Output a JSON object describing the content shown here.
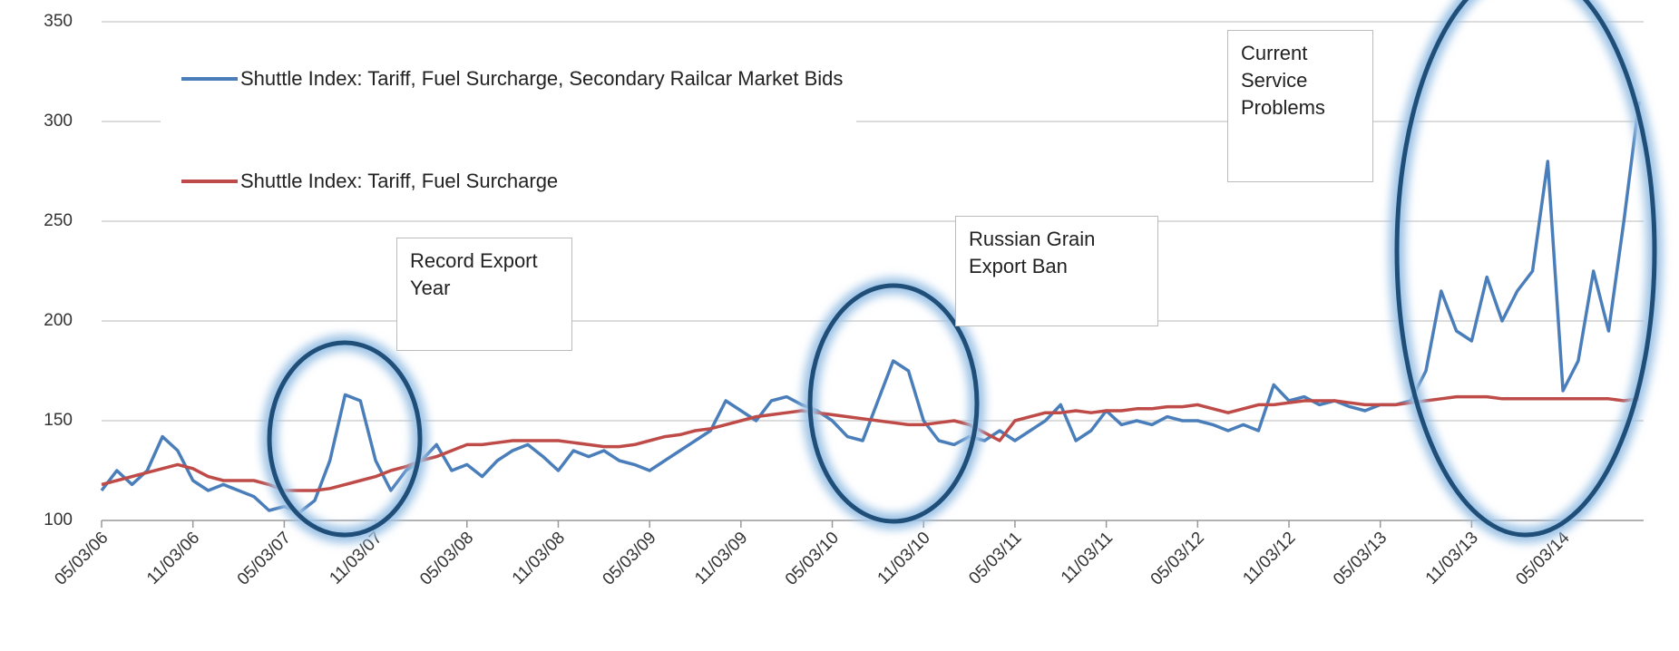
{
  "chart_data": {
    "type": "line",
    "categories": [
      "05/03/06",
      null,
      null,
      null,
      null,
      null,
      "11/03/06",
      null,
      null,
      null,
      null,
      null,
      "05/03/07",
      null,
      null,
      null,
      null,
      null,
      "11/03/07",
      null,
      null,
      null,
      null,
      null,
      "05/03/08",
      null,
      null,
      null,
      null,
      null,
      "11/03/08",
      null,
      null,
      null,
      null,
      null,
      "05/03/09",
      null,
      null,
      null,
      null,
      null,
      "11/03/09",
      null,
      null,
      null,
      null,
      null,
      "05/03/10",
      null,
      null,
      null,
      null,
      null,
      "11/03/10",
      null,
      null,
      null,
      null,
      null,
      "05/03/11",
      null,
      null,
      null,
      null,
      null,
      "11/03/11",
      null,
      null,
      null,
      null,
      null,
      "05/03/12",
      null,
      null,
      null,
      null,
      null,
      "11/03/12",
      null,
      null,
      null,
      null,
      null,
      "05/03/13",
      null,
      null,
      null,
      null,
      null,
      "11/03/13",
      null,
      null,
      null,
      null,
      null,
      "05/03/14",
      null,
      null,
      null,
      null,
      null
    ],
    "series": [
      {
        "name": "Shuttle Index: Tariff, Fuel Surcharge, Secondary Railcar Market Bids",
        "color": "#4a7ebb",
        "values": [
          115,
          125,
          118,
          125,
          142,
          135,
          120,
          115,
          118,
          115,
          112,
          105,
          107,
          104,
          110,
          130,
          163,
          160,
          130,
          115,
          125,
          130,
          138,
          125,
          128,
          122,
          130,
          135,
          138,
          132,
          125,
          135,
          132,
          135,
          130,
          128,
          125,
          130,
          135,
          140,
          145,
          160,
          155,
          150,
          160,
          162,
          158,
          155,
          150,
          142,
          140,
          160,
          180,
          175,
          150,
          140,
          138,
          142,
          140,
          145,
          140,
          145,
          150,
          158,
          140,
          145,
          155,
          148,
          150,
          148,
          152,
          150,
          150,
          148,
          145,
          148,
          145,
          168,
          160,
          162,
          158,
          160,
          157,
          155,
          158,
          158,
          160,
          175,
          215,
          195,
          190,
          222,
          200,
          215,
          225,
          280,
          165,
          180,
          225,
          195,
          250,
          310
        ]
      },
      {
        "name": "Shuttle Index: Tariff, Fuel Surcharge",
        "color": "#be4b48",
        "values": [
          118,
          120,
          122,
          124,
          126,
          128,
          126,
          122,
          120,
          120,
          120,
          118,
          115,
          115,
          115,
          116,
          118,
          120,
          122,
          125,
          127,
          130,
          132,
          135,
          138,
          138,
          139,
          140,
          140,
          140,
          140,
          139,
          138,
          137,
          137,
          138,
          140,
          142,
          143,
          145,
          146,
          148,
          150,
          152,
          153,
          154,
          155,
          154,
          153,
          152,
          151,
          150,
          149,
          148,
          148,
          149,
          150,
          148,
          144,
          140,
          150,
          152,
          154,
          154,
          155,
          154,
          155,
          155,
          156,
          156,
          157,
          157,
          158,
          156,
          154,
          156,
          158,
          158,
          159,
          160,
          160,
          160,
          159,
          158,
          158,
          158,
          159,
          160,
          161,
          162,
          162,
          162,
          161,
          161,
          161,
          161,
          161,
          161,
          161,
          161,
          160,
          161
        ]
      }
    ],
    "ylim": [
      100,
      350
    ],
    "yticks": [
      100,
      150,
      200,
      250,
      300,
      350
    ],
    "grid": true,
    "annotations": [
      "Record Export Year",
      "Russian Grain Export Ban",
      "Current Service Problems"
    ]
  }
}
